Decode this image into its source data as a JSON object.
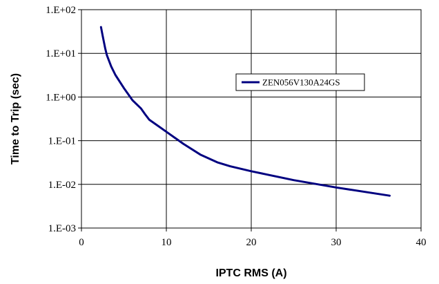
{
  "chart_data": {
    "type": "line",
    "xlabel": "IPTC RMS (A)",
    "ylabel": "Time to Trip (sec)",
    "xlim": [
      0,
      40
    ],
    "ylim": [
      0.001,
      100
    ],
    "yscale": "log",
    "grid": true,
    "legend": "inside, right",
    "x_ticks": [
      "0",
      "10",
      "20",
      "30",
      "40"
    ],
    "y_ticks": [
      "1.E-03",
      "1.E-02",
      "1.E-01",
      "1.E+00",
      "1.E+01",
      "1.E+02"
    ],
    "series": [
      {
        "name": "ZEN056V130A24GS",
        "color": "#000080",
        "x": [
          2.3,
          2.5,
          2.8,
          3.0,
          3.5,
          4.0,
          5.0,
          6.0,
          7.0,
          7.5,
          8.0,
          9.0,
          10.0,
          12.0,
          14.0,
          16.0,
          17.5,
          20.0,
          25.0,
          30.0,
          36.3
        ],
        "y": [
          40,
          25,
          13,
          9,
          5,
          3.2,
          1.6,
          0.85,
          0.55,
          0.4,
          0.3,
          0.22,
          0.16,
          0.085,
          0.048,
          0.032,
          0.026,
          0.02,
          0.0125,
          0.0085,
          0.0055
        ]
      }
    ]
  }
}
